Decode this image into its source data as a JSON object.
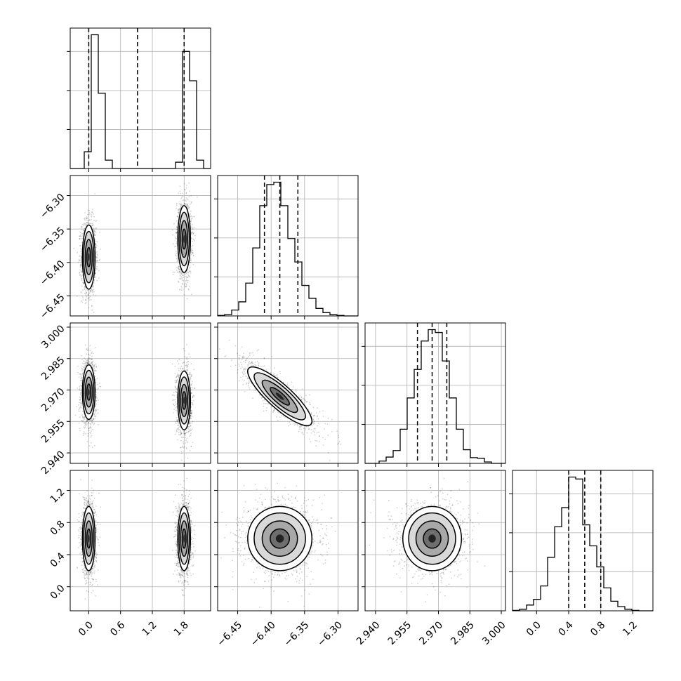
{
  "chart_data": {
    "type": "corner",
    "parameters": [
      {
        "index": 0,
        "range": [
          -0.35,
          2.3
        ],
        "ticks": [
          0.0,
          0.6,
          1.2,
          1.8
        ],
        "tick_labels": [
          "0.0",
          "0.6",
          "1.2",
          "1.8"
        ],
        "quantile_lines": [
          0.0,
          0.92,
          1.8
        ]
      },
      {
        "index": 1,
        "range": [
          -6.48,
          -6.27
        ],
        "ticks": [
          -6.45,
          -6.4,
          -6.35,
          -6.3
        ],
        "tick_labels": [
          "−6.45",
          "−6.40",
          "−6.35",
          "−6.30"
        ],
        "quantile_lines": [
          -6.41,
          -6.387,
          -6.36
        ]
      },
      {
        "index": 2,
        "range": [
          2.935,
          3.002
        ],
        "ticks": [
          2.94,
          2.955,
          2.97,
          2.985,
          3.0
        ],
        "tick_labels": [
          "2.940",
          "2.955",
          "2.970",
          "2.985",
          "3.000"
        ],
        "quantile_lines": [
          2.96,
          2.967,
          2.974
        ]
      },
      {
        "index": 3,
        "range": [
          -0.3,
          1.45
        ],
        "ticks": [
          0.0,
          0.4,
          0.8,
          1.2
        ],
        "tick_labels": [
          "0.0",
          "0.4",
          "0.8",
          "1.2"
        ],
        "quantile_lines": [
          0.4,
          0.6,
          0.8
        ]
      }
    ],
    "histograms": [
      {
        "param": 0,
        "edges_range": [
          -0.35,
          2.3
        ],
        "bins": 20,
        "counts": [
          0,
          0,
          80,
          640,
          360,
          40,
          0,
          0,
          0,
          0,
          0,
          0,
          0,
          0,
          0,
          30,
          560,
          420,
          40,
          0
        ]
      },
      {
        "param": 1,
        "edges_range": [
          -6.48,
          -6.27
        ],
        "bins": 20,
        "counts": [
          2,
          6,
          25,
          60,
          140,
          290,
          470,
          560,
          570,
          470,
          330,
          230,
          130,
          75,
          32,
          14,
          5,
          2,
          0,
          0
        ]
      },
      {
        "param": 2,
        "edges_range": [
          2.935,
          3.002
        ],
        "bins": 20,
        "counts": [
          0,
          0,
          8,
          22,
          45,
          120,
          230,
          330,
          430,
          470,
          460,
          360,
          230,
          120,
          48,
          20,
          18,
          5,
          0,
          0
        ]
      },
      {
        "param": 3,
        "edges_range": [
          -0.3,
          1.45
        ],
        "bins": 20,
        "counts": [
          2,
          8,
          30,
          60,
          130,
          280,
          440,
          540,
          700,
          690,
          450,
          340,
          230,
          120,
          50,
          22,
          8,
          2,
          0,
          0
        ]
      }
    ],
    "pairs": [
      {
        "x_param": 0,
        "y_param": 1,
        "clusters": [
          {
            "center": [
              0.0,
              -6.392
            ],
            "sigma": [
              0.06,
              0.024
            ],
            "rho": 0.0
          },
          {
            "center": [
              1.8,
              -6.365
            ],
            "sigma": [
              0.06,
              0.025
            ],
            "rho": 0.0
          }
        ]
      },
      {
        "x_param": 0,
        "y_param": 2,
        "clusters": [
          {
            "center": [
              0.0,
              2.969
            ],
            "sigma": [
              0.06,
              0.0065
            ],
            "rho": 0.0
          },
          {
            "center": [
              1.8,
              2.965
            ],
            "sigma": [
              0.06,
              0.007
            ],
            "rho": 0.0
          }
        ]
      },
      {
        "x_param": 1,
        "y_param": 2,
        "clusters": [
          {
            "center": [
              -6.387,
              2.967
            ],
            "sigma": [
              0.024,
              0.007
            ],
            "rho": -0.85
          }
        ]
      },
      {
        "x_param": 0,
        "y_param": 3,
        "clusters": [
          {
            "center": [
              0.0,
              0.6
            ],
            "sigma": [
              0.06,
              0.2
            ],
            "rho": 0.0
          },
          {
            "center": [
              1.8,
              0.6
            ],
            "sigma": [
              0.06,
              0.2
            ],
            "rho": 0.0
          }
        ]
      },
      {
        "x_param": 1,
        "y_param": 3,
        "clusters": [
          {
            "center": [
              -6.387,
              0.6
            ],
            "sigma": [
              0.024,
              0.2
            ],
            "rho": 0.0
          }
        ]
      },
      {
        "x_param": 2,
        "y_param": 3,
        "clusters": [
          {
            "center": [
              2.967,
              0.6
            ],
            "sigma": [
              0.007,
              0.2
            ],
            "rho": 0.0
          }
        ]
      }
    ],
    "grid": true
  }
}
